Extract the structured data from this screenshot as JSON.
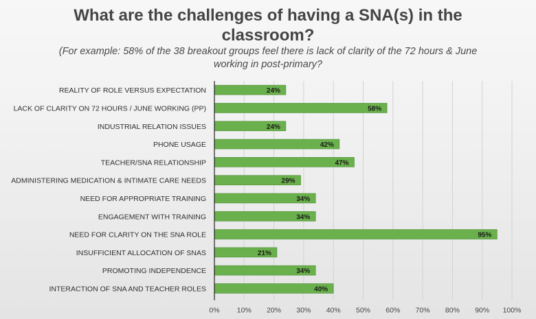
{
  "chart_data": {
    "type": "bar",
    "orientation": "horizontal",
    "title": "What are the challenges of having a SNA(s) in the classroom?",
    "subtitle": "(For example: 58% of the 38 breakout groups feel there is lack of clarity of the 72 hours & June working in post-primary?",
    "categories": [
      "REALITY OF ROLE VERSUS EXPECTATION",
      "LACK OF CLARITY ON 72 HOURS / JUNE WORKING (PP)",
      "INDUSTRIAL RELATION ISSUES",
      "PHONE USAGE",
      "TEACHER/SNA RELATIONSHIP",
      "ADMINISTERING MEDICATION & INTIMATE CARE NEEDS",
      "NEED FOR APPROPRIATE TRAINING",
      "ENGAGEMENT WITH TRAINING",
      "NEED FOR CLARITY ON THE SNA ROLE",
      "INSUFFICIENT ALLOCATION OF SNAS",
      "PROMOTING INDEPENDENCE",
      "INTERACTION OF SNA AND TEACHER ROLES"
    ],
    "values": [
      24,
      58,
      24,
      42,
      47,
      29,
      34,
      34,
      95,
      21,
      34,
      40
    ],
    "data_labels": [
      "24%",
      "58%",
      "24%",
      "42%",
      "47%",
      "29%",
      "34%",
      "34%",
      "95%",
      "21%",
      "34%",
      "40%"
    ],
    "xlim": [
      0,
      100
    ],
    "x_ticks": [
      "0%",
      "10%",
      "20%",
      "30%",
      "40%",
      "50%",
      "60%",
      "70%",
      "80%",
      "90%",
      "100%"
    ],
    "grid": true,
    "legend": "none",
    "colors": {
      "bar": "#6ab04c",
      "bar_edge": "#4e8f35",
      "grid": "#d2d2d2",
      "axis": "#222222"
    }
  }
}
